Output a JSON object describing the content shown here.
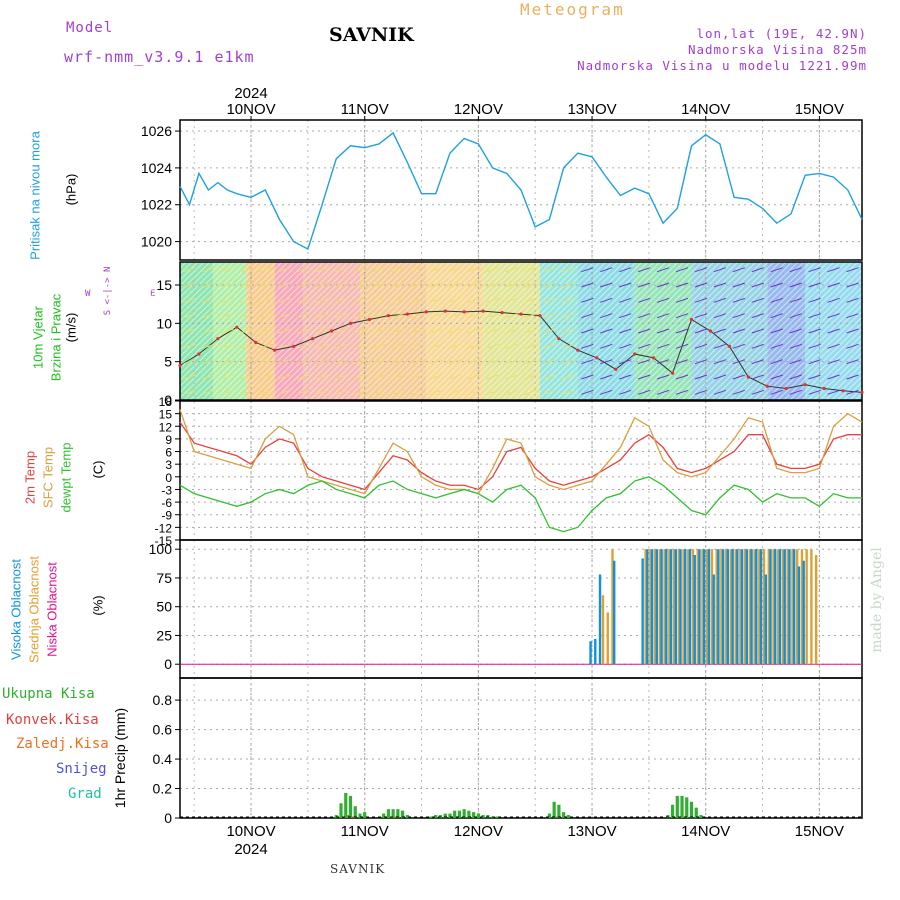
{
  "header": {
    "model_label": "Model",
    "model_name": "wrf-nmm_v3.9.1 e1km",
    "station": "SAVNIK",
    "meteogram": "Meteogram",
    "lonlat": "lon,lat (19E, 42.9N)",
    "altitude": "Nadmorska Visina 825m",
    "model_altitude": "Nadmorska Visina u modelu 1221.99m"
  },
  "footer": {
    "station": "SAVNIK"
  },
  "credit": "made by Angel",
  "time_axis": {
    "year": "2024",
    "days": [
      "10NOV",
      "11NOV",
      "12NOV",
      "13NOV",
      "14NOV",
      "15NOV"
    ],
    "start_hours_before_first_day": 15,
    "total_hours": 144
  },
  "colors": {
    "pressure": "#20a0e0",
    "temp2m": "#e84040",
    "sfc_temp": "#d8a040",
    "dewpoint": "#30c030",
    "high_cloud": "#1090e0",
    "mid_cloud": "#e0a030",
    "low_cloud": "#e01090",
    "precip_total": "#30b030",
    "precip_conv": "#e04040",
    "precip_frozen": "#f07020",
    "snow": "#5050e0",
    "grad": "#20c0a0",
    "wind_label": "#20c020",
    "wind_axis": "#a040d0"
  },
  "panels": {
    "pressure": {
      "label1": "Pritisak na nivou mora",
      "unit": "(hPa)",
      "ticks": [
        "1020",
        "1022",
        "1024",
        "1026"
      ]
    },
    "wind": {
      "label1": "10m Vjetar",
      "label2": "Brzina i Pravac",
      "unit": "(m/s)",
      "ticks": [
        "0",
        "5",
        "10",
        "15"
      ],
      "compass_top": "S <-|-> N",
      "compass_mid": "W",
      "compass_right": "E"
    },
    "temp": {
      "label1": "2m Temp",
      "label2": "SFC Temp",
      "label3": "dewpt Temp",
      "unit": "(C)",
      "ticks": [
        "-15",
        "-12",
        "-9",
        "-6",
        "-3",
        "0",
        "3",
        "6",
        "9",
        "12",
        "15",
        "18"
      ]
    },
    "cloud": {
      "label1": "Visoka Oblacnost",
      "label2": "Srednja Oblacnost",
      "label3": "Niska Oblacnost",
      "unit": "(%)",
      "ticks": [
        "0",
        "25",
        "50",
        "75",
        "100"
      ]
    },
    "precip": {
      "unit": "1hr Precip (mm)",
      "ticks": [
        "0",
        "0.2",
        "0.4",
        "0.6",
        "0.8"
      ],
      "legend": [
        "Ukupna Kisa",
        "Konvek.Kisa",
        "Zaledj.Kisa",
        "Snijeg",
        "Grad"
      ]
    }
  },
  "chart_data": [
    {
      "type": "line",
      "title": "Pritisak na nivou mora",
      "ylabel": "(hPa)",
      "ylim": [
        1019,
        1026.6
      ],
      "x_hours": [
        0,
        2,
        4,
        6,
        8,
        10,
        12,
        15,
        18,
        21,
        24,
        27,
        30,
        33,
        36,
        39,
        42,
        45,
        48,
        51,
        54,
        57,
        60,
        63,
        66,
        69,
        72,
        75,
        78,
        81,
        84,
        87,
        90,
        93,
        96,
        99,
        102,
        105,
        108,
        111,
        114,
        117,
        120,
        123,
        126,
        129,
        132,
        135,
        138,
        141,
        144
      ],
      "series": [
        {
          "values": [
            1023.0,
            1022.0,
            1023.7,
            1022.8,
            1023.2,
            1022.8,
            1022.6,
            1022.4,
            1022.8,
            1021.2,
            1020.0,
            1019.6,
            1022.0,
            1024.5,
            1025.2,
            1025.1,
            1025.3,
            1025.9,
            1024.3,
            1022.6,
            1022.6,
            1024.8,
            1025.6,
            1025.3,
            1024.0,
            1023.7,
            1022.8,
            1020.8,
            1021.2,
            1024.0,
            1024.8,
            1024.6,
            1023.5,
            1022.5,
            1022.9,
            1022.6,
            1021.0,
            1021.8,
            1025.2,
            1025.8,
            1025.3,
            1022.4,
            1022.3,
            1021.8,
            1021.0,
            1021.5,
            1023.6,
            1023.7,
            1023.5,
            1022.8,
            1021.2
          ]
        }
      ]
    },
    {
      "type": "line",
      "title": "10m Vjetar Brzina i Pravac",
      "ylabel": "(m/s)",
      "ylim": [
        0,
        18
      ],
      "x_hours": [
        0,
        4,
        8,
        12,
        16,
        20,
        24,
        28,
        32,
        36,
        40,
        44,
        48,
        52,
        56,
        60,
        64,
        68,
        72,
        76,
        80,
        84,
        88,
        92,
        96,
        100,
        104,
        108,
        112,
        116,
        120,
        124,
        128,
        132,
        136,
        140,
        144
      ],
      "series": [
        {
          "values": [
            4.5,
            6.0,
            8.0,
            9.5,
            7.5,
            6.5,
            7.0,
            8.0,
            9.0,
            10.0,
            10.5,
            11.0,
            11.2,
            11.5,
            11.6,
            11.5,
            11.6,
            11.4,
            11.2,
            11.0,
            8.0,
            6.5,
            5.5,
            4.0,
            6.0,
            5.5,
            3.5,
            10.5,
            9.0,
            7.0,
            3.0,
            1.8,
            1.5,
            2.0,
            1.5,
            1.2,
            1.0
          ]
        }
      ]
    },
    {
      "type": "line",
      "title": "2m Temp / SFC Temp / dewpt Temp",
      "ylabel": "(C)",
      "ylim": [
        -15,
        18
      ],
      "x_hours": [
        0,
        3,
        6,
        9,
        12,
        15,
        18,
        21,
        24,
        27,
        30,
        33,
        36,
        39,
        42,
        45,
        48,
        51,
        54,
        57,
        60,
        63,
        66,
        69,
        72,
        75,
        78,
        81,
        84,
        87,
        90,
        93,
        96,
        99,
        102,
        105,
        108,
        111,
        114,
        117,
        120,
        123,
        126,
        129,
        132,
        135,
        138,
        141,
        144
      ],
      "series": [
        {
          "name": "2m Temp",
          "values": [
            13,
            8,
            7,
            6,
            5,
            3,
            7,
            9,
            8,
            2,
            0,
            -1,
            -2,
            -3,
            1,
            5,
            4,
            1,
            -1,
            -2,
            -2,
            -3,
            0,
            6,
            7,
            2,
            -1,
            -2,
            -1,
            0,
            2,
            4,
            8,
            10,
            7,
            2,
            1,
            2,
            4,
            6,
            10,
            10,
            3,
            2,
            2,
            3,
            9,
            10,
            10
          ]
        },
        {
          "name": "SFC Temp",
          "values": [
            16,
            6,
            5,
            4,
            3,
            2,
            9,
            12,
            10,
            0,
            -1,
            -2,
            -3,
            -4,
            2,
            8,
            6,
            0,
            -2,
            -3,
            -3,
            -4,
            2,
            9,
            8,
            0,
            -2,
            -3,
            -2,
            -1,
            3,
            7,
            14,
            12,
            4,
            1,
            0,
            1,
            5,
            9,
            14,
            13,
            2,
            1,
            1,
            2,
            12,
            15,
            13
          ]
        },
        {
          "name": "dewpt Temp",
          "values": [
            -2,
            -4,
            -5,
            -6,
            -7,
            -6,
            -4,
            -3,
            -4,
            -2,
            -1,
            -3,
            -4,
            -5,
            -2,
            -1,
            -3,
            -4,
            -5,
            -4,
            -3,
            -4,
            -6,
            -3,
            -2,
            -5,
            -12,
            -13,
            -12,
            -8,
            -5,
            -4,
            -1,
            0,
            -2,
            -5,
            -8,
            -9,
            -5,
            -2,
            -3,
            -6,
            -4,
            -5,
            -5,
            -7,
            -4,
            -5,
            -5
          ]
        }
      ]
    },
    {
      "type": "bar",
      "title": "Oblacnost",
      "ylabel": "(%)",
      "ylim": [
        0,
        100
      ],
      "x_hours": [
        87,
        88,
        89,
        90,
        91,
        92,
        93,
        98,
        99,
        100,
        101,
        102,
        103,
        104,
        105,
        106,
        107,
        108,
        109,
        110,
        111,
        112,
        113,
        114,
        115,
        116,
        117,
        118,
        119,
        120,
        121,
        122,
        123,
        124,
        125,
        126,
        127,
        128,
        129,
        130,
        131,
        132,
        133,
        134
      ],
      "series": [
        {
          "name": "Visoka Oblacnost",
          "values": [
            20,
            22,
            78,
            0,
            0,
            90,
            0,
            92,
            100,
            100,
            100,
            100,
            100,
            100,
            100,
            100,
            100,
            100,
            95,
            100,
            100,
            100,
            78,
            100,
            100,
            100,
            100,
            100,
            100,
            100,
            100,
            100,
            100,
            78,
            100,
            100,
            100,
            100,
            100,
            100,
            85,
            90,
            0,
            0
          ]
        },
        {
          "name": "Srednja Oblacnost",
          "values": [
            0,
            0,
            60,
            45,
            100,
            0,
            0,
            100,
            100,
            100,
            100,
            100,
            100,
            100,
            100,
            100,
            100,
            100,
            100,
            100,
            100,
            100,
            100,
            100,
            100,
            100,
            100,
            100,
            100,
            100,
            100,
            100,
            100,
            100,
            100,
            100,
            100,
            100,
            100,
            100,
            100,
            100,
            100,
            95
          ]
        },
        {
          "name": "Niska Oblacnost",
          "values": [
            0,
            0,
            0,
            0,
            0,
            0,
            0,
            0,
            0,
            0,
            0,
            0,
            0,
            0,
            0,
            0,
            0,
            0,
            0,
            0,
            0,
            0,
            0,
            0,
            0,
            0,
            0,
            0,
            0,
            0,
            0,
            0,
            0,
            0,
            0,
            0,
            0,
            0,
            0,
            0,
            0,
            0,
            0,
            0
          ]
        }
      ]
    },
    {
      "type": "bar",
      "title": "1hr Precip",
      "ylabel": "1hr Precip (mm)",
      "ylim": [
        0,
        0.95
      ],
      "x_hours": [
        33,
        34,
        35,
        36,
        37,
        38,
        39,
        43,
        44,
        45,
        46,
        47,
        48,
        53,
        54,
        55,
        56,
        57,
        58,
        59,
        60,
        61,
        62,
        63,
        64,
        65,
        66,
        67,
        78,
        79,
        80,
        81,
        82,
        103,
        104,
        105,
        106,
        107,
        108,
        109,
        110
      ],
      "series": [
        {
          "name": "Ukupna Kisa",
          "values": [
            0.02,
            0.1,
            0.17,
            0.15,
            0.08,
            0.03,
            0.04,
            0.03,
            0.06,
            0.06,
            0.06,
            0.05,
            0.02,
            0.01,
            0.02,
            0.02,
            0.03,
            0.03,
            0.05,
            0.05,
            0.06,
            0.05,
            0.04,
            0.03,
            0.02,
            0.02,
            0.01,
            0.01,
            0.03,
            0.11,
            0.09,
            0.04,
            0.02,
            0.02,
            0.09,
            0.15,
            0.15,
            0.14,
            0.11,
            0.07,
            0.02
          ]
        },
        {
          "name": "Konvek.Kisa",
          "values": [
            0,
            0,
            0.02,
            0.01,
            0,
            0,
            0,
            0,
            0.01,
            0.01,
            0,
            0,
            0,
            0,
            0,
            0,
            0,
            0,
            0,
            0,
            0,
            0,
            0,
            0,
            0,
            0,
            0,
            0,
            0,
            0.01,
            0,
            0,
            0,
            0,
            0,
            0.01,
            0.01,
            0,
            0,
            0,
            0
          ]
        }
      ]
    }
  ]
}
